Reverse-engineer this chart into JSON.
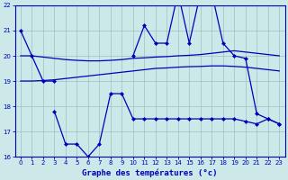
{
  "x": [
    0,
    1,
    2,
    3,
    4,
    5,
    6,
    7,
    8,
    9,
    10,
    11,
    12,
    13,
    14,
    15,
    16,
    17,
    18,
    19,
    20,
    21,
    22,
    23
  ],
  "line_top_spiky": [
    21.0,
    20.0,
    19.0,
    19.0,
    null,
    null,
    null,
    null,
    null,
    null,
    20.0,
    21.2,
    20.5,
    20.5,
    22.5,
    20.5,
    22.5,
    22.5,
    20.5,
    20.0,
    19.9,
    17.7,
    17.5,
    17.3
  ],
  "line_upper_smooth": [
    20.0,
    20.0,
    19.95,
    19.9,
    19.85,
    19.82,
    19.8,
    19.8,
    19.82,
    19.85,
    19.9,
    19.92,
    19.95,
    19.97,
    20.0,
    20.02,
    20.05,
    20.1,
    20.15,
    20.2,
    20.15,
    20.1,
    20.05,
    20.0
  ],
  "line_lower_smooth": [
    19.0,
    19.0,
    19.02,
    19.05,
    19.1,
    19.15,
    19.2,
    19.25,
    19.3,
    19.35,
    19.4,
    19.45,
    19.5,
    19.52,
    19.55,
    19.57,
    19.58,
    19.6,
    19.6,
    19.58,
    19.55,
    19.5,
    19.45,
    19.4
  ],
  "line_bot_spiky": [
    null,
    null,
    null,
    17.8,
    16.5,
    16.5,
    16.0,
    16.5,
    18.5,
    18.5,
    17.5,
    17.5,
    17.5,
    17.5,
    17.5,
    17.5,
    17.5,
    17.5,
    17.5,
    17.5,
    17.4,
    17.3,
    17.5,
    17.3
  ],
  "ylim": [
    16,
    22
  ],
  "yticks": [
    16,
    17,
    18,
    19,
    20,
    21,
    22
  ],
  "xticks": [
    0,
    1,
    2,
    3,
    4,
    5,
    6,
    7,
    8,
    9,
    10,
    11,
    12,
    13,
    14,
    15,
    16,
    17,
    18,
    19,
    20,
    21,
    22,
    23
  ],
  "xlabel": "Graphe des températures (°c)",
  "line_color": "#0000bb",
  "bg_color": "#cce8e8",
  "grid_color": "#9ababa",
  "grid_minor_color": "#b8d8d8"
}
